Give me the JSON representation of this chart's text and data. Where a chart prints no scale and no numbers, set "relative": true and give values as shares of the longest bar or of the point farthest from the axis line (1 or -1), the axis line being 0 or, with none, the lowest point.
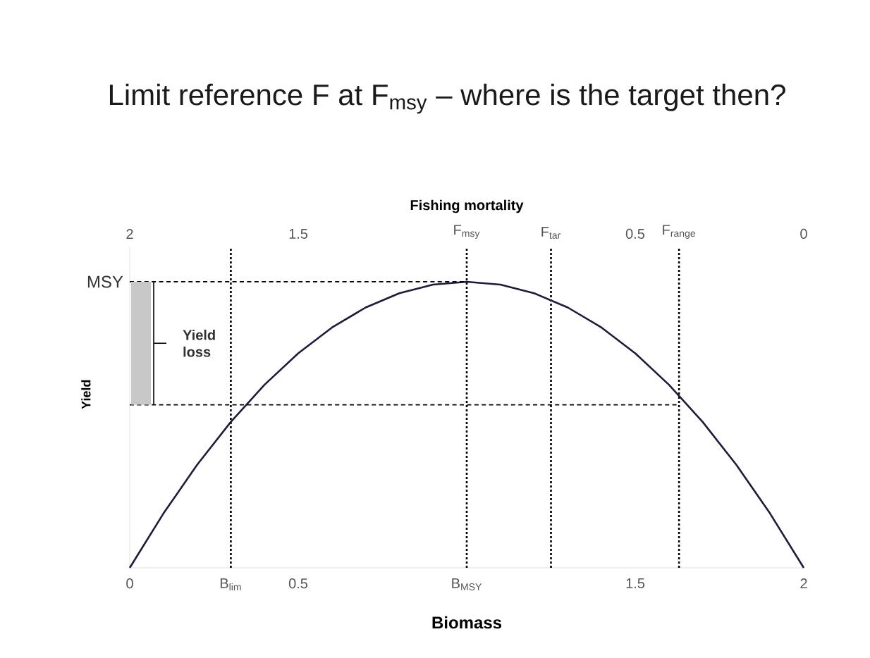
{
  "chart_data": {
    "type": "line",
    "title": "Limit reference F at F$_{msy}$ – where is the target then?",
    "xlabel": "Biomass",
    "x2label": "Fishing mortality",
    "ylabel": "Yield",
    "relative": true,
    "xlim": [
      0,
      2
    ],
    "xticks": [
      0,
      {
        "value": 0.3,
        "label": "B$_{lim}$"
      },
      0.5,
      {
        "value": 1,
        "label": "B$_{MSY}$"
      },
      1.5,
      2
    ],
    "x2lim": [
      2,
      0
    ],
    "x2ticks": [
      2,
      1.5,
      {
        "value": 1,
        "label": "F$_{msy}$"
      },
      {
        "value": 0.75,
        "label": "F$_{tar}$"
      },
      0.5,
      {
        "value": 0.37,
        "label": "F$_{range}$"
      },
      0
    ],
    "series": [
      {
        "color": "#1c1c3c",
        "x": [
          0,
          0.1,
          0.2,
          0.3,
          0.4,
          0.5,
          0.6,
          0.7,
          0.8,
          0.9,
          1,
          1.1,
          1.2,
          1.3,
          1.4,
          1.5,
          1.6,
          1.7,
          1.8,
          1.9,
          2
        ],
        "values": [
          0,
          0.19,
          0.36,
          0.51,
          0.64,
          0.75,
          0.84,
          0.91,
          0.96,
          0.99,
          1,
          0.99,
          0.96,
          0.91,
          0.84,
          0.75,
          0.64,
          0.51,
          0.36,
          0.19,
          0
        ]
      },
      {
        "color": "#000000",
        "line_style": "dashed",
        "x": [
          0,
          1
        ],
        "values": [
          1,
          1
        ]
      },
      {
        "color": "#000000",
        "line_style": "dashed",
        "x": [
          0,
          1.63
        ],
        "values": [
          0.57,
          0.57
        ]
      }
    ],
    "ref_lines": [
      {
        "axis": "x",
        "value": 0.3,
        "color": "#000000",
        "line_style": "dotted"
      },
      {
        "axis": "x",
        "value": 1,
        "color": "#000000",
        "line_style": "dotted"
      },
      {
        "axis": "x",
        "value": 1.25,
        "color": "#000000",
        "line_style": "dotted"
      },
      {
        "axis": "x",
        "value": 1.63,
        "color": "#000000",
        "line_style": "dotted"
      }
    ],
    "annotations": [
      {
        "text": "MSY",
        "x": 0,
        "y": 1
      },
      "Yield loss"
    ]
  }
}
